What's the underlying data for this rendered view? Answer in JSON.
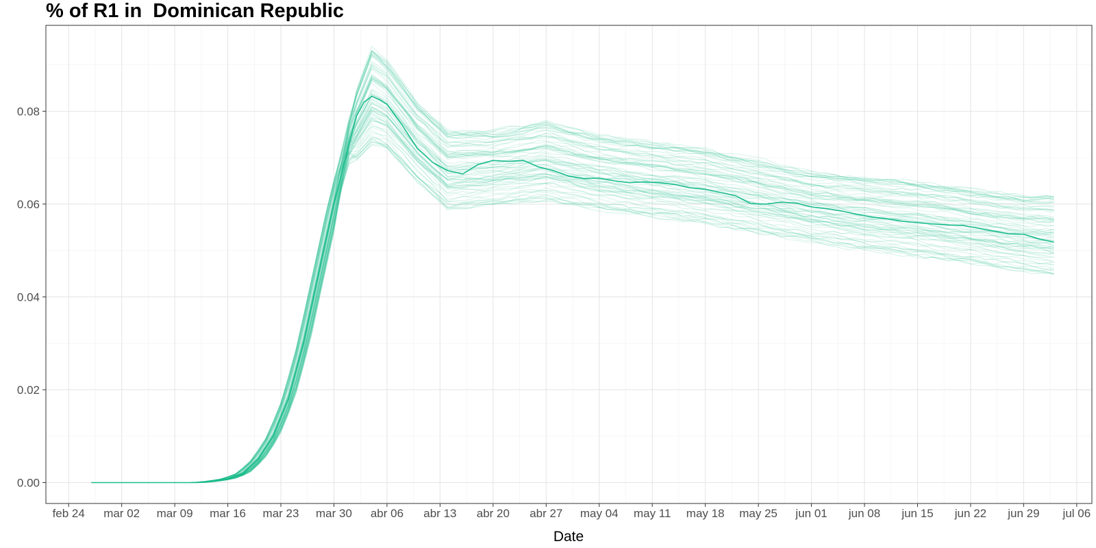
{
  "chart_data": {
    "type": "line",
    "title": "% of R1 in  Dominican Republic",
    "xlabel": "Date",
    "ylabel": "",
    "x_range": [
      "2020-02-21",
      "2020-07-08"
    ],
    "ylim": [
      -0.0045,
      0.0985
    ],
    "y_ticks": [
      0.0,
      0.02,
      0.04,
      0.06,
      0.08
    ],
    "y_tick_labels": [
      "0.00",
      "0.02",
      "0.04",
      "0.06",
      "0.08"
    ],
    "x_ticks": [
      "2020-02-24",
      "2020-03-02",
      "2020-03-09",
      "2020-03-16",
      "2020-03-23",
      "2020-03-30",
      "2020-04-06",
      "2020-04-13",
      "2020-04-20",
      "2020-04-27",
      "2020-05-04",
      "2020-05-11",
      "2020-05-18",
      "2020-05-25",
      "2020-06-01",
      "2020-06-08",
      "2020-06-15",
      "2020-06-22",
      "2020-06-29",
      "2020-07-06"
    ],
    "x_tick_labels": [
      "feb 24",
      "mar 02",
      "mar 09",
      "mar 16",
      "mar 23",
      "mar 30",
      "abr 06",
      "abr 13",
      "abr 20",
      "abr 27",
      "may 04",
      "may 11",
      "may 18",
      "may 25",
      "jun 01",
      "jun 08",
      "jun 15",
      "jun 22",
      "jun 29",
      "jul 06"
    ],
    "grid": true,
    "legend": "none",
    "color": "#1abc8c",
    "series": [
      {
        "role": "median",
        "points": [
          [
            "2020-02-27",
            0.0
          ],
          [
            "2020-03-12",
            0.0
          ],
          [
            "2020-03-14",
            0.0003
          ],
          [
            "2020-03-16",
            0.0008
          ],
          [
            "2020-03-18",
            0.002
          ],
          [
            "2020-03-20",
            0.005
          ],
          [
            "2020-03-22",
            0.01
          ],
          [
            "2020-03-24",
            0.018
          ],
          [
            "2020-03-26",
            0.03
          ],
          [
            "2020-03-28",
            0.045
          ],
          [
            "2020-03-30",
            0.06
          ],
          [
            "2020-04-01",
            0.073
          ],
          [
            "2020-04-02",
            0.079
          ],
          [
            "2020-04-03",
            0.082
          ],
          [
            "2020-04-04",
            0.0832
          ],
          [
            "2020-04-05",
            0.0825
          ],
          [
            "2020-04-06",
            0.0815
          ],
          [
            "2020-04-08",
            0.077
          ],
          [
            "2020-04-10",
            0.072
          ],
          [
            "2020-04-12",
            0.069
          ],
          [
            "2020-04-14",
            0.0672
          ],
          [
            "2020-04-16",
            0.0665
          ],
          [
            "2020-04-18",
            0.0685
          ],
          [
            "2020-04-20",
            0.0694
          ],
          [
            "2020-04-22",
            0.0692
          ],
          [
            "2020-04-24",
            0.0694
          ],
          [
            "2020-04-26",
            0.068
          ],
          [
            "2020-04-28",
            0.0672
          ],
          [
            "2020-04-30",
            0.066
          ],
          [
            "2020-05-02",
            0.0655
          ],
          [
            "2020-05-04",
            0.0656
          ],
          [
            "2020-05-06",
            0.065
          ],
          [
            "2020-05-08",
            0.0646
          ],
          [
            "2020-05-10",
            0.0648
          ],
          [
            "2020-05-12",
            0.0646
          ],
          [
            "2020-05-14",
            0.0642
          ],
          [
            "2020-05-16",
            0.0635
          ],
          [
            "2020-05-18",
            0.0632
          ],
          [
            "2020-05-20",
            0.0625
          ],
          [
            "2020-05-22",
            0.0618
          ],
          [
            "2020-05-24",
            0.0601
          ],
          [
            "2020-05-26",
            0.06
          ],
          [
            "2020-05-28",
            0.0604
          ],
          [
            "2020-05-30",
            0.0602
          ],
          [
            "2020-06-01",
            0.0594
          ],
          [
            "2020-06-03",
            0.059
          ],
          [
            "2020-06-05",
            0.0585
          ],
          [
            "2020-06-07",
            0.0578
          ],
          [
            "2020-06-09",
            0.0572
          ],
          [
            "2020-06-11",
            0.0568
          ],
          [
            "2020-06-13",
            0.0563
          ],
          [
            "2020-06-15",
            0.056
          ],
          [
            "2020-06-17",
            0.0557
          ],
          [
            "2020-06-19",
            0.0555
          ],
          [
            "2020-06-21",
            0.0554
          ],
          [
            "2020-06-23",
            0.0548
          ],
          [
            "2020-06-25",
            0.0542
          ],
          [
            "2020-06-27",
            0.0536
          ],
          [
            "2020-06-29",
            0.0535
          ],
          [
            "2020-07-01",
            0.0525
          ],
          [
            "2020-07-03",
            0.0518
          ]
        ]
      }
    ],
    "ensemble_band": {
      "runs": 80,
      "points": [
        [
          "2020-03-30",
          0.058,
          0.066
        ],
        [
          "2020-04-01",
          0.068,
          0.08
        ],
        [
          "2020-04-04",
          0.073,
          0.094
        ],
        [
          "2020-04-06",
          0.072,
          0.091
        ],
        [
          "2020-04-10",
          0.065,
          0.082
        ],
        [
          "2020-04-14",
          0.059,
          0.076
        ],
        [
          "2020-04-20",
          0.06,
          0.076
        ],
        [
          "2020-04-27",
          0.061,
          0.078
        ],
        [
          "2020-05-04",
          0.059,
          0.075
        ],
        [
          "2020-05-18",
          0.056,
          0.072
        ],
        [
          "2020-06-01",
          0.052,
          0.067
        ],
        [
          "2020-06-15",
          0.049,
          0.065
        ],
        [
          "2020-06-29",
          0.046,
          0.062
        ],
        [
          "2020-07-03",
          0.045,
          0.062
        ]
      ]
    }
  }
}
